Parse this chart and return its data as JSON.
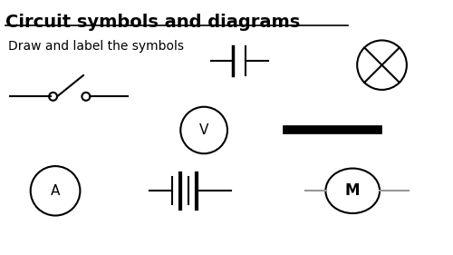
{
  "title": "Circuit symbols and diagrams",
  "subtitle": "Draw and label the symbols",
  "bg_color": "#ffffff",
  "title_fontsize": 14,
  "subtitle_fontsize": 10,
  "lw": 1.5,
  "xlim": [
    0,
    10
  ],
  "ylim": [
    0,
    5.62
  ]
}
